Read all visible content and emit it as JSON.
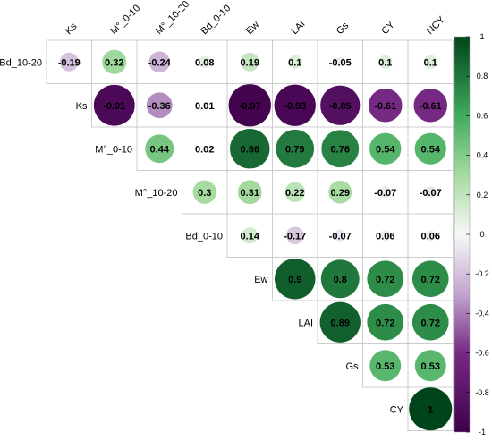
{
  "chart_data": {
    "type": "heatmap",
    "style": "upper-triangle correlation matrix, circles sized and colored by coefficient",
    "column_labels": [
      "Ks",
      "M°_0-10",
      "M°_10-20",
      "Bd_0-10",
      "Ew",
      "LAI",
      "Gs",
      "CY",
      "NCY"
    ],
    "row_labels": [
      "Bd_10-20",
      "Ks",
      "M°_0-10",
      "M°_10-20",
      "Bd_0-10",
      "Ew",
      "LAI",
      "Gs",
      "CY"
    ],
    "values": [
      [
        -0.19,
        0.32,
        -0.24,
        0.08,
        0.19,
        0.1,
        -0.05,
        0.1,
        0.1
      ],
      [
        null,
        -0.91,
        -0.36,
        0.01,
        -0.97,
        -0.93,
        -0.85,
        -0.61,
        -0.61
      ],
      [
        null,
        null,
        0.44,
        0.02,
        0.86,
        0.79,
        0.76,
        0.54,
        0.54
      ],
      [
        null,
        null,
        null,
        0.3,
        0.31,
        0.22,
        0.29,
        -0.07,
        -0.07
      ],
      [
        null,
        null,
        null,
        null,
        0.14,
        -0.17,
        -0.07,
        0.06,
        0.06
      ],
      [
        null,
        null,
        null,
        null,
        null,
        0.9,
        0.8,
        0.72,
        0.72
      ],
      [
        null,
        null,
        null,
        null,
        null,
        null,
        0.89,
        0.72,
        0.72
      ],
      [
        null,
        null,
        null,
        null,
        null,
        null,
        null,
        0.53,
        0.53
      ],
      [
        null,
        null,
        null,
        null,
        null,
        null,
        null,
        null,
        1
      ]
    ],
    "value_labels": [
      [
        "-0.19",
        "0.32",
        "-0.24",
        "0.08",
        "0.19",
        "0.1",
        "-0.05",
        "0.1",
        "0.1"
      ],
      [
        null,
        "-0.91",
        "-0.36",
        "0.01",
        "-0.97",
        "-0.93",
        "-0.85",
        "-0.61",
        "-0.61"
      ],
      [
        null,
        null,
        "0.44",
        "0.02",
        "0.86",
        "0.79",
        "0.76",
        "0.54",
        "0.54"
      ],
      [
        null,
        null,
        null,
        "0.3",
        "0.31",
        "0.22",
        "0.29",
        "-0.07",
        "-0.07"
      ],
      [
        null,
        null,
        null,
        null,
        "0.14",
        "-0.17",
        "-0.07",
        "0.06",
        "0.06"
      ],
      [
        null,
        null,
        null,
        null,
        null,
        "0.9",
        "0.8",
        "0.72",
        "0.72"
      ],
      [
        null,
        null,
        null,
        null,
        null,
        null,
        "0.89",
        "0.72",
        "0.72"
      ],
      [
        null,
        null,
        null,
        null,
        null,
        null,
        null,
        "0.53",
        "0.53"
      ],
      [
        null,
        null,
        null,
        null,
        null,
        null,
        null,
        null,
        "1"
      ]
    ],
    "colorbar": {
      "range": [
        -1,
        1
      ],
      "ticks": [
        1,
        0.8,
        0.6,
        0.4,
        0.2,
        0,
        -0.2,
        -0.4,
        -0.6,
        -0.8,
        -1
      ],
      "tick_labels": [
        "1",
        "0.8",
        "0.6",
        "0.4",
        "0.2",
        "0",
        "-0.2",
        "-0.4",
        "-0.6",
        "-0.8",
        "-1"
      ],
      "position": "right"
    },
    "colors": {
      "negative_end": "#40004b",
      "neutral": "#f7f7f7",
      "positive_end": "#00441b",
      "grid": "#cccccc"
    }
  }
}
